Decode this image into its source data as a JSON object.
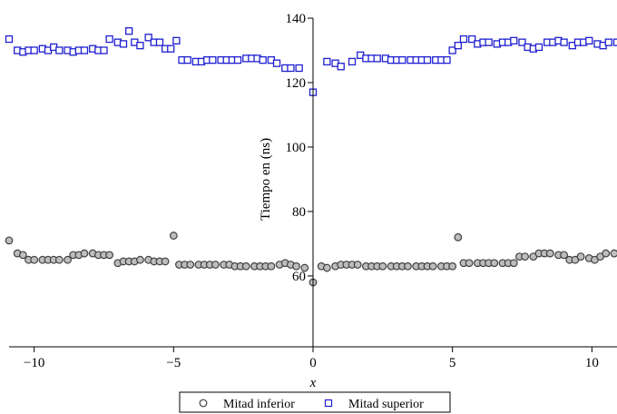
{
  "chart_data": {
    "type": "scatter",
    "title": "",
    "xlabel": "x",
    "ylabel": "Tiempo en (ns)",
    "xlim": [
      -10.9,
      10.9
    ],
    "ylim": [
      38,
      140
    ],
    "x_ticks": [
      -10,
      -5,
      0,
      5,
      10
    ],
    "x_tick_labels": [
      "−10",
      "−5",
      "0",
      "5",
      "10"
    ],
    "y_ticks": [
      60,
      80,
      100,
      120,
      140
    ],
    "y_tick_labels": [
      "60",
      "80",
      "100",
      "120",
      "140"
    ],
    "grid": false,
    "legend_position": "bottom-center",
    "series": [
      {
        "name": "Mitad inferior",
        "marker": "circle",
        "color": "#404040",
        "points": [
          [
            -10.9,
            71
          ],
          [
            -10.6,
            67
          ],
          [
            -10.4,
            66.5
          ],
          [
            -10.2,
            65
          ],
          [
            -10.0,
            65
          ],
          [
            -9.7,
            65
          ],
          [
            -9.5,
            65
          ],
          [
            -9.3,
            65
          ],
          [
            -9.1,
            65
          ],
          [
            -8.8,
            65
          ],
          [
            -8.6,
            66.5
          ],
          [
            -8.4,
            66.5
          ],
          [
            -8.2,
            67
          ],
          [
            -7.9,
            67
          ],
          [
            -7.7,
            66.5
          ],
          [
            -7.5,
            66.5
          ],
          [
            -7.3,
            66.5
          ],
          [
            -7.0,
            64
          ],
          [
            -6.8,
            64.5
          ],
          [
            -6.6,
            64.5
          ],
          [
            -6.4,
            64.5
          ],
          [
            -6.2,
            65
          ],
          [
            -5.9,
            65
          ],
          [
            -5.7,
            64.5
          ],
          [
            -5.5,
            64.5
          ],
          [
            -5.3,
            64.5
          ],
          [
            -5.0,
            72.5
          ],
          [
            -4.8,
            63.5
          ],
          [
            -4.6,
            63.5
          ],
          [
            -4.4,
            63.5
          ],
          [
            -4.1,
            63.5
          ],
          [
            -3.9,
            63.5
          ],
          [
            -3.7,
            63.5
          ],
          [
            -3.5,
            63.5
          ],
          [
            -3.2,
            63.5
          ],
          [
            -3.0,
            63.5
          ],
          [
            -2.8,
            63
          ],
          [
            -2.6,
            63
          ],
          [
            -2.4,
            63
          ],
          [
            -2.1,
            63
          ],
          [
            -1.9,
            63
          ],
          [
            -1.7,
            63
          ],
          [
            -1.5,
            63
          ],
          [
            -1.2,
            63.5
          ],
          [
            -1.0,
            64
          ],
          [
            -0.8,
            63.5
          ],
          [
            -0.6,
            63
          ],
          [
            -0.3,
            62.5
          ],
          [
            0.0,
            58
          ],
          [
            0.3,
            63
          ],
          [
            0.5,
            62.5
          ],
          [
            0.8,
            63
          ],
          [
            1.0,
            63.5
          ],
          [
            1.2,
            63.5
          ],
          [
            1.4,
            63.5
          ],
          [
            1.6,
            63.5
          ],
          [
            1.9,
            63
          ],
          [
            2.1,
            63
          ],
          [
            2.3,
            63
          ],
          [
            2.5,
            63
          ],
          [
            2.8,
            63
          ],
          [
            3.0,
            63
          ],
          [
            3.2,
            63
          ],
          [
            3.4,
            63
          ],
          [
            3.7,
            63
          ],
          [
            3.9,
            63
          ],
          [
            4.1,
            63
          ],
          [
            4.3,
            63
          ],
          [
            4.6,
            63
          ],
          [
            4.8,
            63
          ],
          [
            5.0,
            63
          ],
          [
            5.2,
            72
          ],
          [
            5.4,
            64
          ],
          [
            5.6,
            64
          ],
          [
            5.9,
            64
          ],
          [
            6.1,
            64
          ],
          [
            6.3,
            64
          ],
          [
            6.5,
            64
          ],
          [
            6.8,
            64
          ],
          [
            7.0,
            64
          ],
          [
            7.2,
            64
          ],
          [
            7.4,
            66
          ],
          [
            7.6,
            66
          ],
          [
            7.9,
            66
          ],
          [
            8.1,
            67
          ],
          [
            8.3,
            67
          ],
          [
            8.5,
            67
          ],
          [
            8.8,
            66.5
          ],
          [
            9.0,
            66.5
          ],
          [
            9.2,
            65
          ],
          [
            9.4,
            65
          ],
          [
            9.6,
            66
          ],
          [
            9.9,
            65.5
          ],
          [
            10.1,
            65
          ],
          [
            10.3,
            66
          ],
          [
            10.5,
            67
          ],
          [
            10.8,
            67
          ]
        ]
      },
      {
        "name": "Mitad superior",
        "marker": "square",
        "color": "#1f1fd0",
        "points": [
          [
            -10.9,
            133.5
          ],
          [
            -10.6,
            130
          ],
          [
            -10.4,
            129.5
          ],
          [
            -10.2,
            130
          ],
          [
            -10.0,
            130
          ],
          [
            -9.7,
            130.5
          ],
          [
            -9.5,
            130
          ],
          [
            -9.3,
            131
          ],
          [
            -9.1,
            130
          ],
          [
            -8.8,
            130
          ],
          [
            -8.6,
            129.5
          ],
          [
            -8.4,
            130
          ],
          [
            -8.2,
            130
          ],
          [
            -7.9,
            130.5
          ],
          [
            -7.7,
            130
          ],
          [
            -7.5,
            130
          ],
          [
            -7.3,
            133.5
          ],
          [
            -7.0,
            132.5
          ],
          [
            -6.8,
            132
          ],
          [
            -6.6,
            136
          ],
          [
            -6.4,
            132.5
          ],
          [
            -6.2,
            131.5
          ],
          [
            -5.9,
            134
          ],
          [
            -5.7,
            132.5
          ],
          [
            -5.5,
            132.5
          ],
          [
            -5.3,
            130.5
          ],
          [
            -5.1,
            130.5
          ],
          [
            -4.9,
            133
          ],
          [
            -4.7,
            127
          ],
          [
            -4.5,
            127
          ],
          [
            -4.2,
            126.5
          ],
          [
            -4.0,
            126.5
          ],
          [
            -3.8,
            127
          ],
          [
            -3.6,
            127
          ],
          [
            -3.3,
            127
          ],
          [
            -3.1,
            127
          ],
          [
            -2.9,
            127
          ],
          [
            -2.7,
            127
          ],
          [
            -2.4,
            127.5
          ],
          [
            -2.2,
            127.5
          ],
          [
            -2.0,
            127.5
          ],
          [
            -1.8,
            127
          ],
          [
            -1.5,
            127
          ],
          [
            -1.3,
            126
          ],
          [
            -1.0,
            124.5
          ],
          [
            -0.8,
            124.5
          ],
          [
            -0.5,
            124.5
          ],
          [
            0.0,
            117
          ],
          [
            0.5,
            126.5
          ],
          [
            0.8,
            126
          ],
          [
            1.0,
            125
          ],
          [
            1.4,
            126.5
          ],
          [
            1.7,
            128.5
          ],
          [
            1.9,
            127.5
          ],
          [
            2.1,
            127.5
          ],
          [
            2.3,
            127.5
          ],
          [
            2.6,
            127.5
          ],
          [
            2.8,
            127
          ],
          [
            3.0,
            127
          ],
          [
            3.2,
            127
          ],
          [
            3.5,
            127
          ],
          [
            3.7,
            127
          ],
          [
            3.9,
            127
          ],
          [
            4.1,
            127
          ],
          [
            4.4,
            127
          ],
          [
            4.6,
            127
          ],
          [
            4.8,
            127
          ],
          [
            5.0,
            130
          ],
          [
            5.2,
            131.5
          ],
          [
            5.4,
            133.5
          ],
          [
            5.7,
            133.5
          ],
          [
            5.9,
            132
          ],
          [
            6.1,
            132.5
          ],
          [
            6.3,
            132.5
          ],
          [
            6.6,
            132
          ],
          [
            6.8,
            132.5
          ],
          [
            7.0,
            132.5
          ],
          [
            7.2,
            133
          ],
          [
            7.5,
            132.5
          ],
          [
            7.7,
            131
          ],
          [
            7.9,
            130.5
          ],
          [
            8.1,
            131
          ],
          [
            8.4,
            132.5
          ],
          [
            8.6,
            132.5
          ],
          [
            8.8,
            133
          ],
          [
            9.0,
            132.5
          ],
          [
            9.3,
            131.5
          ],
          [
            9.5,
            132.5
          ],
          [
            9.7,
            132.5
          ],
          [
            9.9,
            133
          ],
          [
            10.2,
            132
          ],
          [
            10.4,
            131.5
          ],
          [
            10.6,
            132.5
          ],
          [
            10.9,
            132.5
          ]
        ]
      }
    ]
  }
}
